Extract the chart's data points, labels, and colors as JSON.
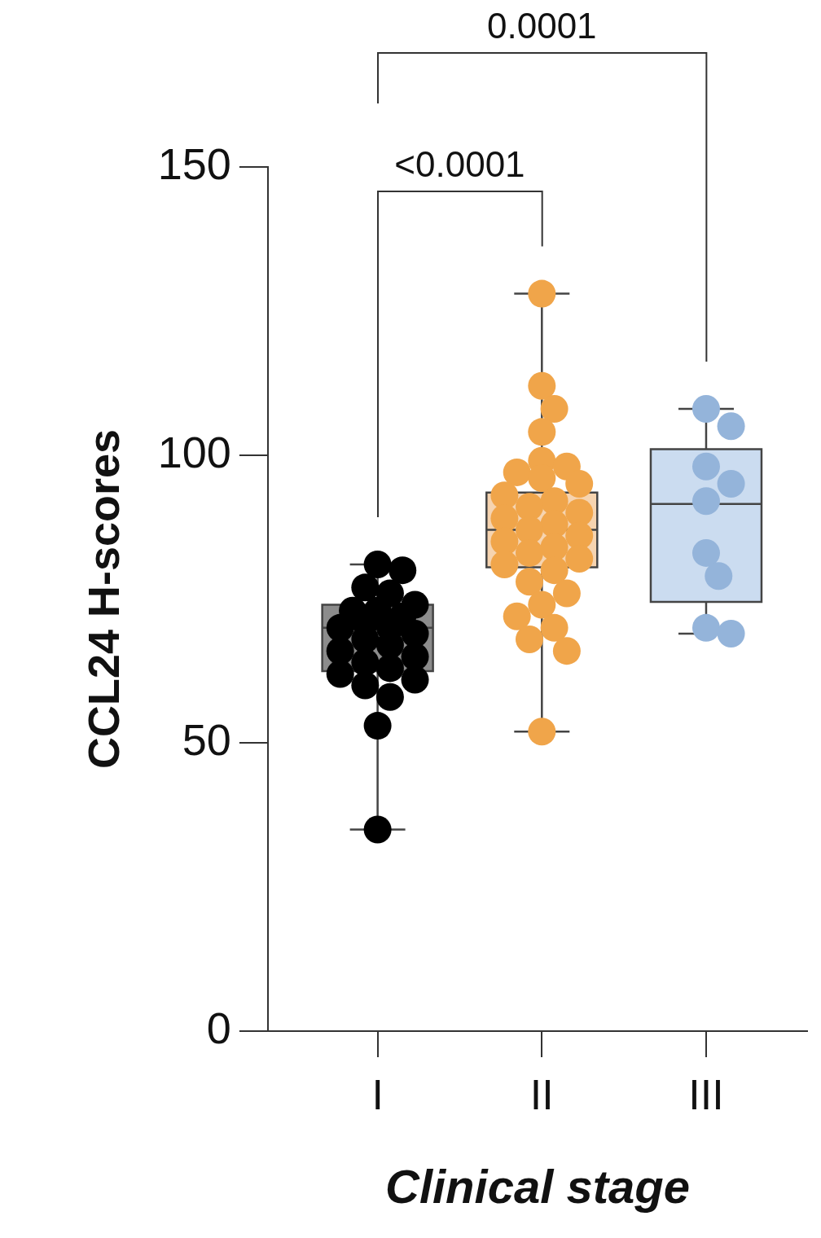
{
  "chart_data": {
    "type": "box",
    "categories": [
      "I",
      "II",
      "III"
    ],
    "boxes": [
      {
        "low": 35,
        "q1": 62.5,
        "median": 70,
        "q3": 74,
        "high": 81
      },
      {
        "low": 52,
        "q1": 80.5,
        "median": 87,
        "q3": 93.5,
        "high": 128
      },
      {
        "low": 69,
        "q1": 74.5,
        "median": 91.5,
        "q3": 101,
        "high": 108
      }
    ],
    "colors": [
      "#8c8c8c",
      "#f6d4b0",
      "#cbdcf0"
    ],
    "series": [
      {
        "type": "scatter",
        "color": "#000000",
        "x": [
          "I",
          "I",
          "I",
          "I",
          "I",
          "I",
          "I",
          "I",
          "I",
          "I",
          "I",
          "I",
          "I",
          "I",
          "I",
          "I",
          "I",
          "I",
          "I",
          "I",
          "I",
          "I",
          "I",
          "I"
        ],
        "values": [
          81,
          80,
          77,
          76,
          74,
          73,
          73,
          72,
          71,
          70,
          70,
          69,
          68,
          67,
          66,
          65,
          64,
          63,
          62,
          61,
          60,
          58,
          53,
          35
        ]
      },
      {
        "type": "scatter",
        "color": "#f0a54a",
        "x": [
          "II",
          "II",
          "II",
          "II",
          "II",
          "II",
          "II",
          "II",
          "II",
          "II",
          "II",
          "II",
          "II",
          "II",
          "II",
          "II",
          "II",
          "II",
          "II",
          "II",
          "II",
          "II",
          "II",
          "II",
          "II",
          "II",
          "II",
          "II",
          "II",
          "II",
          "II"
        ],
        "values": [
          128,
          112,
          108,
          104,
          99,
          98,
          97,
          96,
          95,
          93,
          92,
          91,
          90,
          89,
          88,
          87,
          86,
          85,
          84,
          83,
          82,
          81,
          80,
          78,
          76,
          74,
          72,
          70,
          68,
          66,
          52
        ]
      },
      {
        "type": "scatter",
        "color": "#94b4da",
        "x": [
          "III",
          "III",
          "III",
          "III",
          "III",
          "III",
          "III",
          "III",
          "III"
        ],
        "values": [
          108,
          105,
          98,
          95,
          92,
          83,
          79,
          70,
          69
        ]
      }
    ],
    "ylim": [
      0,
      150
    ],
    "yticks": [
      0,
      50,
      100,
      150
    ],
    "ylabel": "CCL24 H-scores",
    "xlabel": "Clinical stage",
    "annotations": [
      "<0.0001",
      "0.0001"
    ],
    "grid": false,
    "legend": false,
    "marker": "circle"
  }
}
